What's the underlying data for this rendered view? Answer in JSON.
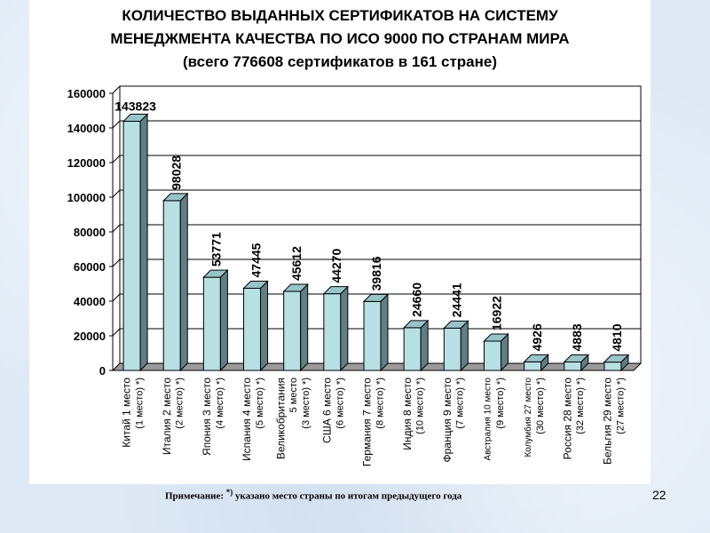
{
  "title_lines": [
    "КОЛИЧЕСТВО ВЫДАННЫХ СЕРТИФИКАТОВ НА СИСТЕМУ",
    "МЕНЕДЖМЕНТА КАЧЕСТВА ПО ИСО 9000 ПО СТРАНАМ МИРА",
    "(всего 776608 сертификатов в 161 стране)"
  ],
  "note": {
    "label": "Примечание:",
    "mark": "*)",
    "text": "указано место страны по итогам предыдущего года"
  },
  "page_number": "22",
  "colors": {
    "bar_front": "#b7e0e4",
    "bar_side": "#5f7f82",
    "bar_top": "#98c4c8",
    "grid": "#000000"
  },
  "chart_data": {
    "type": "bar",
    "categories": [
      {
        "line1": "Китай 1 место",
        "line2": "(1 место) *)"
      },
      {
        "line1": "Италия 2 место",
        "line2": "(2 место) *)"
      },
      {
        "line1": "Япония 3 место",
        "line2": "(4 место) *)"
      },
      {
        "line1": "Испания 4 место",
        "line2": "(5 место) *)"
      },
      {
        "line1": "Великобритания",
        "line2": "5 место",
        "line3": "(3 место) *)"
      },
      {
        "line1": "США 6 место",
        "line2": "(6 место) *)"
      },
      {
        "line1": "Германия 7 место",
        "line2": "(8 место) *)"
      },
      {
        "line1": "Индия 8 место",
        "line2": "(10 место) *)"
      },
      {
        "line1": "Франция 9 место",
        "line2": "(7 место) *)"
      },
      {
        "line1": "Австралия 10 место",
        "line2": "(9 место) *)"
      },
      {
        "line1": "Колумбия 27 место",
        "line2": "(30 место) *)"
      },
      {
        "line1": "Россия 28 место",
        "line2": "(32 место) *)"
      },
      {
        "line1": "Бельгия 29 место",
        "line2": "(27 место) *)"
      }
    ],
    "values": [
      143823,
      98028,
      53771,
      47445,
      45612,
      44270,
      39816,
      24660,
      24441,
      16922,
      4926,
      4883,
      4810
    ],
    "y_ticks": [
      "0",
      "20000",
      "40000",
      "60000",
      "80000",
      "100000",
      "120000",
      "140000",
      "160000"
    ],
    "ylim": [
      0,
      160000
    ],
    "grid": true,
    "style": "3d-column"
  }
}
